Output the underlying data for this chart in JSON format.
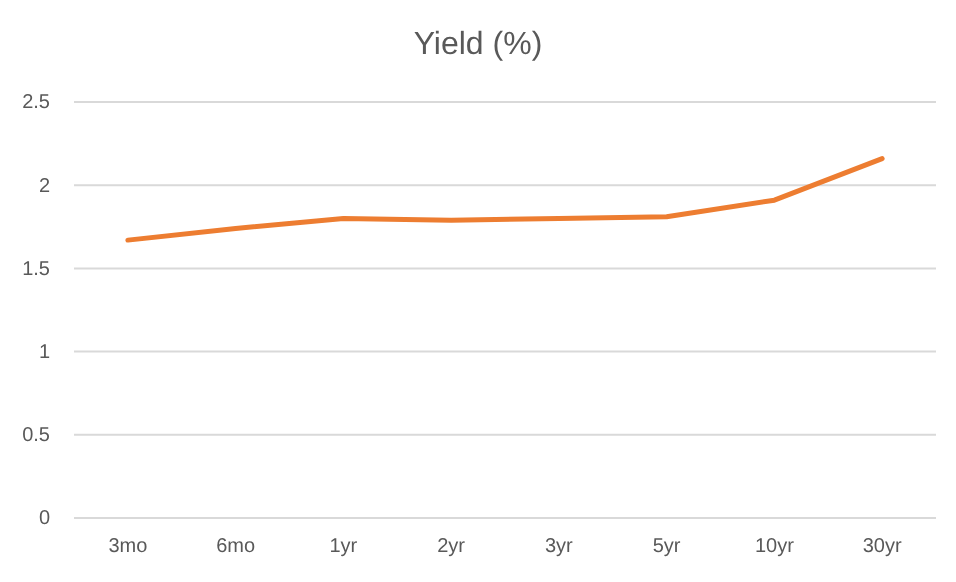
{
  "chart_data": {
    "type": "line",
    "title": "Yield (%)",
    "categories": [
      "3mo",
      "6mo",
      "1yr",
      "2yr",
      "3yr",
      "5yr",
      "10yr",
      "30yr"
    ],
    "series": [
      {
        "color": "#ed7d31",
        "values": [
          1.67,
          1.74,
          1.8,
          1.79,
          1.8,
          1.81,
          1.91,
          2.16
        ]
      }
    ],
    "ylim": [
      0,
      2.5
    ],
    "yticks": [
      0,
      0.5,
      1,
      1.5,
      2,
      2.5
    ],
    "grid": "y",
    "marker": "none",
    "line_style": "solid"
  }
}
